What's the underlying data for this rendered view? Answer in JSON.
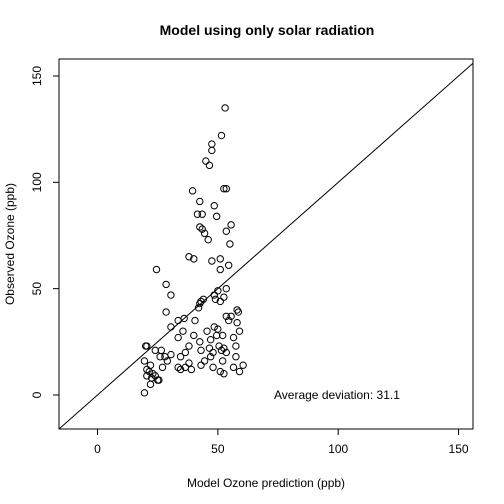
{
  "chart_data": {
    "type": "scatter",
    "title": "Model using only solar radiation",
    "xlabel": "Model Ozone prediction (ppb)",
    "ylabel": "Observed Ozone (ppb)",
    "xlim": [
      -16,
      156
    ],
    "ylim": [
      -16,
      158
    ],
    "xticks": [
      0,
      50,
      100,
      150
    ],
    "yticks": [
      0,
      50,
      100,
      150
    ],
    "reference_line": {
      "type": "identity",
      "slope": 1,
      "intercept": 0
    },
    "annotation": "Average deviation: 31.1",
    "grid": false,
    "marker": "open-circle",
    "color": "#000000",
    "points": [
      [
        53.0,
        135
      ],
      [
        51.5,
        122
      ],
      [
        47.5,
        118
      ],
      [
        47.5,
        115
      ],
      [
        45.0,
        110
      ],
      [
        46.5,
        108
      ],
      [
        52.5,
        97
      ],
      [
        53.5,
        97
      ],
      [
        39.5,
        96
      ],
      [
        48.5,
        89
      ],
      [
        42.5,
        91
      ],
      [
        49.5,
        84
      ],
      [
        41.5,
        85
      ],
      [
        43.5,
        85
      ],
      [
        55.5,
        80
      ],
      [
        42.5,
        79
      ],
      [
        43.5,
        78
      ],
      [
        44.5,
        76
      ],
      [
        53.5,
        77
      ],
      [
        46.0,
        73
      ],
      [
        55.0,
        71
      ],
      [
        38.0,
        65
      ],
      [
        40.0,
        64
      ],
      [
        47.5,
        63
      ],
      [
        51.0,
        64
      ],
      [
        54.5,
        61
      ],
      [
        51.0,
        59
      ],
      [
        24.5,
        59
      ],
      [
        28.5,
        52
      ],
      [
        50.0,
        49
      ],
      [
        48.5,
        47
      ],
      [
        53.5,
        50
      ],
      [
        30.5,
        47
      ],
      [
        52.5,
        46
      ],
      [
        49.0,
        45
      ],
      [
        51.0,
        44
      ],
      [
        43.0,
        44
      ],
      [
        44.0,
        45
      ],
      [
        42.5,
        43
      ],
      [
        42.0,
        41
      ],
      [
        58.0,
        40
      ],
      [
        58.5,
        39
      ],
      [
        28.5,
        39
      ],
      [
        36.0,
        36
      ],
      [
        53.5,
        37
      ],
      [
        55.5,
        37
      ],
      [
        33.5,
        35
      ],
      [
        54.5,
        35
      ],
      [
        58.0,
        34
      ],
      [
        30.5,
        32
      ],
      [
        48.5,
        32
      ],
      [
        50.0,
        31
      ],
      [
        45.5,
        30
      ],
      [
        59.0,
        30
      ],
      [
        40.0,
        28
      ],
      [
        49.5,
        28
      ],
      [
        52.0,
        28
      ],
      [
        33.5,
        27
      ],
      [
        56.5,
        27
      ],
      [
        20.0,
        23
      ],
      [
        20.5,
        23
      ],
      [
        38.0,
        23
      ],
      [
        46.5,
        22
      ],
      [
        50.5,
        23
      ],
      [
        52.5,
        22
      ],
      [
        57.5,
        23
      ],
      [
        24.0,
        21
      ],
      [
        26.5,
        21
      ],
      [
        36.5,
        20
      ],
      [
        43.0,
        21
      ],
      [
        48.0,
        20
      ],
      [
        51.5,
        21
      ],
      [
        53.5,
        20
      ],
      [
        47.0,
        18
      ],
      [
        28.0,
        18
      ],
      [
        30.5,
        19
      ],
      [
        34.5,
        18
      ],
      [
        29.0,
        16
      ],
      [
        38.0,
        15
      ],
      [
        44.5,
        16
      ],
      [
        52.0,
        16
      ],
      [
        19.5,
        16
      ],
      [
        22.0,
        14
      ],
      [
        57.5,
        18
      ],
      [
        20.5,
        12
      ],
      [
        27.0,
        13
      ],
      [
        33.5,
        13
      ],
      [
        36.5,
        13
      ],
      [
        39.0,
        12
      ],
      [
        43.0,
        14
      ],
      [
        48.0,
        13
      ],
      [
        56.5,
        13
      ],
      [
        60.5,
        14
      ],
      [
        21.5,
        11
      ],
      [
        24.0,
        9
      ],
      [
        34.5,
        12
      ],
      [
        51.0,
        11
      ],
      [
        52.5,
        10
      ],
      [
        59.0,
        11
      ],
      [
        20.5,
        9
      ],
      [
        22.5,
        8
      ],
      [
        25.0,
        7
      ],
      [
        25.5,
        7
      ],
      [
        22.0,
        5
      ],
      [
        19.5,
        1
      ],
      [
        42.5,
        25
      ],
      [
        47.0,
        26
      ],
      [
        40.5,
        35
      ],
      [
        35.5,
        30
      ],
      [
        26.0,
        18
      ],
      [
        23.0,
        10
      ]
    ]
  }
}
